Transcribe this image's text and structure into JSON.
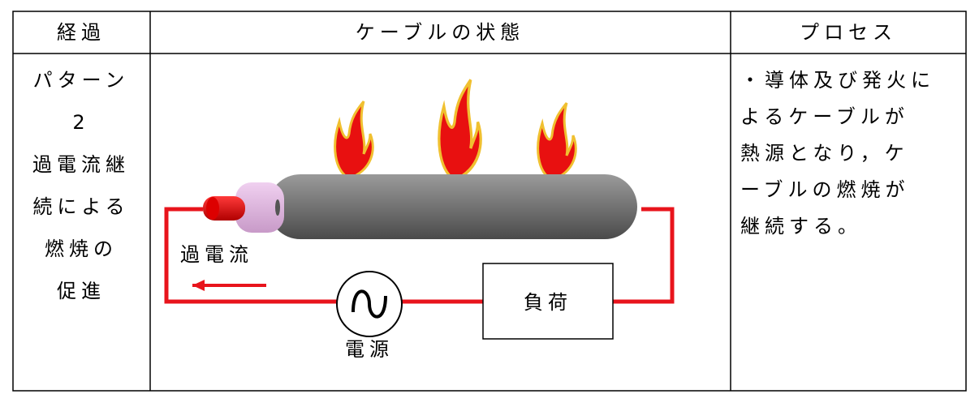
{
  "header": {
    "cells": [
      "経過",
      "ケーブルの状態",
      "プロセス"
    ]
  },
  "row": {
    "progress_lines": [
      "パターン",
      "2",
      "過電流継",
      "続による",
      "燃焼の",
      "促進"
    ],
    "diagram": {
      "current_label": "過電流",
      "load_label": "負荷",
      "source_label": "電源"
    },
    "process_lines": [
      "・導体及び発火に",
      "よるケーブルが",
      "熱源となり，ケ",
      "ーブルの燃焼が",
      "継続する。"
    ]
  }
}
